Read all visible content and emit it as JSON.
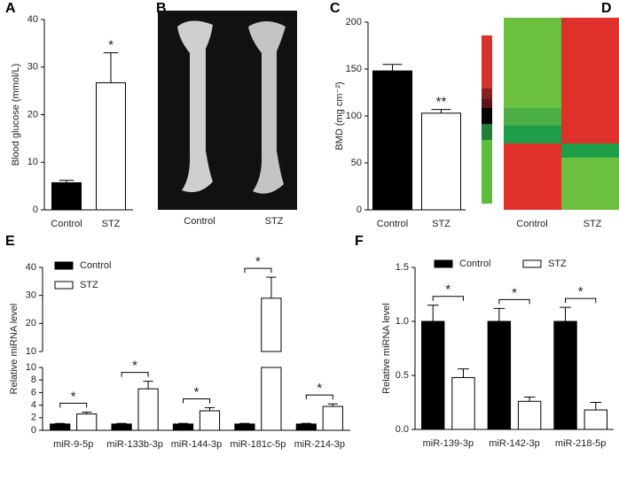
{
  "chart_data": [
    {
      "type": "bar",
      "label": "A",
      "ylabel": "Blood glucose  (mmol/L)",
      "categories": [
        "Control",
        "STZ"
      ],
      "values": [
        5.7,
        26.7
      ],
      "errors": [
        0.5,
        6.3
      ],
      "colors": [
        "#000000",
        "#ffffff"
      ],
      "significance": [
        null,
        "*"
      ],
      "ylim": [
        0,
        40
      ],
      "yticks": [
        0,
        10,
        20,
        30,
        40
      ]
    },
    {
      "type": "bar",
      "label": "C",
      "ylabel": "BMD (mg cm⁻²)",
      "categories": [
        "Control",
        "STZ"
      ],
      "values": [
        148,
        103
      ],
      "errors": [
        7,
        4
      ],
      "colors": [
        "#000000",
        "#ffffff"
      ],
      "significance": [
        null,
        "**"
      ],
      "ylim": [
        0,
        200
      ],
      "yticks": [
        0,
        50,
        100,
        150,
        200
      ]
    },
    {
      "type": "grouped-bar",
      "label": "E",
      "ylabel": "Relative miRNA level",
      "categories": [
        "miR-9-5p",
        "miR-133b-3p",
        "miR-144-3p",
        "miR-181c-5p",
        "miR-214-3p"
      ],
      "series": [
        {
          "name": "Control",
          "color": "#000000",
          "values": [
            1,
            1,
            1,
            1,
            1
          ],
          "errors": [
            0.1,
            0.1,
            0.1,
            0.1,
            0.1
          ]
        },
        {
          "name": "STZ",
          "color": "#ffffff",
          "values": [
            2.6,
            6.6,
            3.1,
            29,
            3.8
          ],
          "errors": [
            0.3,
            1.2,
            0.5,
            7.5,
            0.4
          ]
        }
      ],
      "significance": [
        "*",
        "*",
        "*",
        "*",
        "*"
      ],
      "y_segments": [
        {
          "ylim": [
            0,
            10
          ],
          "yticks": [
            0,
            2,
            4,
            6,
            8,
            10
          ]
        },
        {
          "ylim": [
            10,
            40
          ],
          "yticks": [
            10,
            20,
            30,
            40
          ]
        }
      ],
      "legend": "top-left-vertical"
    },
    {
      "type": "grouped-bar",
      "label": "F",
      "ylabel": "Relative miRNA level",
      "categories": [
        "miR-139-3p",
        "miR-142-3p",
        "miR-218-5p"
      ],
      "series": [
        {
          "name": "Control",
          "color": "#000000",
          "values": [
            1,
            1,
            1
          ],
          "errors": [
            0.15,
            0.12,
            0.13
          ]
        },
        {
          "name": "STZ",
          "color": "#ffffff",
          "values": [
            0.48,
            0.26,
            0.18
          ],
          "errors": [
            0.08,
            0.04,
            0.07
          ]
        }
      ],
      "significance": [
        "*",
        "*",
        "*"
      ],
      "ylim": [
        0,
        1.5
      ],
      "yticks": [
        {
          "value": 0,
          "label": "0.0"
        },
        0.5,
        {
          "value": 1,
          "label": "1.0"
        },
        1.5
      ],
      "legend": "top-horizontal"
    }
  ],
  "image_panel": {
    "label": "B",
    "captions": [
      "Control",
      "STZ"
    ]
  },
  "heatmap_panel": {
    "label": "D",
    "columns": [
      "Control",
      "STZ"
    ]
  }
}
